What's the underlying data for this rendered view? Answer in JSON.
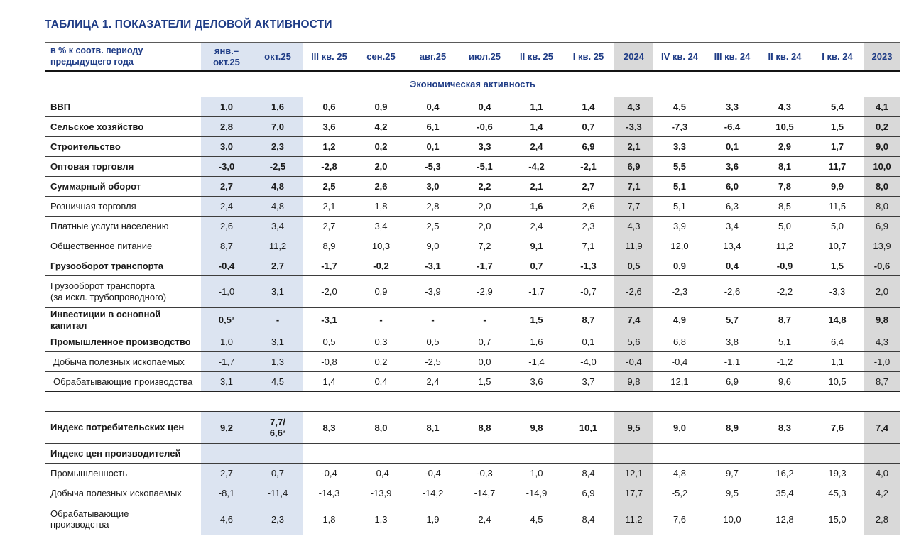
{
  "page": {
    "title": "ТАБЛИЦА 1. ПОКАЗАТЕЛИ ДЕЛОВОЙ АКТИВНОСТИ"
  },
  "colors": {
    "heading_navy": "#1f3c86",
    "column_shade_blue": "#dce4f1",
    "column_shade_gray": "#d9d9d9",
    "body_text": "#1a1a1a"
  },
  "table": {
    "corner_label": "в % к соотв. периоду\nпредыдущего года",
    "columns": [
      {
        "label": "янв.–\nокт.25",
        "shade": "blue"
      },
      {
        "label": "окт.25",
        "shade": "blue"
      },
      {
        "label": "III кв. 25"
      },
      {
        "label": "сен.25"
      },
      {
        "label": "авг.25"
      },
      {
        "label": "июл.25"
      },
      {
        "label": "II кв. 25"
      },
      {
        "label": "I кв. 25"
      },
      {
        "label": "2024",
        "shade": "gray"
      },
      {
        "label": "IV кв. 24"
      },
      {
        "label": "III кв. 24"
      },
      {
        "label": "II кв. 24"
      },
      {
        "label": "I кв. 24"
      },
      {
        "label": "2023",
        "shade": "gray"
      }
    ],
    "section_header": "Экономическая активность",
    "rows": [
      {
        "label": "ВВП",
        "label_bold": true,
        "values_bold": true,
        "values": [
          "1,0",
          "1,6",
          "0,6",
          "0,9",
          "0,4",
          "0,4",
          "1,1",
          "1,4",
          "4,3",
          "4,5",
          "3,3",
          "4,3",
          "5,4",
          "4,1"
        ]
      },
      {
        "label": "Сельское хозяйство",
        "label_bold": true,
        "values_bold": true,
        "values": [
          "2,8",
          "7,0",
          "3,6",
          "4,2",
          "6,1",
          "-0,6",
          "1,4",
          "0,7",
          "-3,3",
          "-7,3",
          "-6,4",
          "10,5",
          "1,5",
          "0,2"
        ]
      },
      {
        "label": "Строительство",
        "label_bold": true,
        "values_bold": true,
        "values": [
          "3,0",
          "2,3",
          "1,2",
          "0,2",
          "0,1",
          "3,3",
          "2,4",
          "6,9",
          "2,1",
          "3,3",
          "0,1",
          "2,9",
          "1,7",
          "9,0"
        ]
      },
      {
        "label": "Оптовая торговля",
        "label_bold": true,
        "values_bold": true,
        "values": [
          "-3,0",
          "-2,5",
          "-2,8",
          "2,0",
          "-5,3",
          "-5,1",
          "-4,2",
          "-2,1",
          "6,9",
          "5,5",
          "3,6",
          "8,1",
          "11,7",
          "10,0"
        ]
      },
      {
        "label": "Суммарный оборот",
        "label_bold": true,
        "values_bold": true,
        "values": [
          "2,7",
          "4,8",
          "2,5",
          "2,6",
          "3,0",
          "2,2",
          "2,1",
          "2,7",
          "7,1",
          "5,1",
          "6,0",
          "7,8",
          "9,9",
          "8,0"
        ]
      },
      {
        "label": "Розничная торговля",
        "bold_cells": [
          6
        ],
        "values": [
          "2,4",
          "4,8",
          "2,1",
          "1,8",
          "2,8",
          "2,0",
          "1,6",
          "2,6",
          "7,7",
          "5,1",
          "6,3",
          "8,5",
          "11,5",
          "8,0"
        ]
      },
      {
        "label": "Платные услуги населению",
        "values": [
          "2,6",
          "3,4",
          "2,7",
          "3,4",
          "2,5",
          "2,0",
          "2,4",
          "2,3",
          "4,3",
          "3,9",
          "3,4",
          "5,0",
          "5,0",
          "6,9"
        ]
      },
      {
        "label": "Общественное питание",
        "bold_cells": [
          6
        ],
        "values": [
          "8,7",
          "11,2",
          "8,9",
          "10,3",
          "9,0",
          "7,2",
          "9,1",
          "7,1",
          "11,9",
          "12,0",
          "13,4",
          "11,2",
          "10,7",
          "13,9"
        ]
      },
      {
        "label": "Грузооборот транспорта",
        "label_bold": true,
        "values_bold": true,
        "values": [
          "-0,4",
          "2,7",
          "-1,7",
          "-0,2",
          "-3,1",
          "-1,7",
          "0,7",
          "-1,3",
          "0,5",
          "0,9",
          "0,4",
          "-0,9",
          "1,5",
          "-0,6"
        ]
      },
      {
        "label": "Грузооборот транспорта\n(за искл. трубопроводного)",
        "values": [
          "-1,0",
          "3,1",
          "-2,0",
          "0,9",
          "-3,9",
          "-2,9",
          "-1,7",
          "-0,7",
          "-2,6",
          "-2,3",
          "-2,6",
          "-2,2",
          "-3,3",
          "2,0"
        ]
      },
      {
        "label": "Инвестиции в основной капитал",
        "label_bold": true,
        "values_bold": true,
        "values": [
          "0,5¹",
          "-",
          "-3,1",
          "-",
          "-",
          "-",
          "1,5",
          "8,7",
          "7,4",
          "4,9",
          "5,7",
          "8,7",
          "14,8",
          "9,8"
        ]
      },
      {
        "label": "Промышленное производство",
        "label_bold": true,
        "values": [
          "1,0",
          "3,1",
          "0,5",
          "0,3",
          "0,5",
          "0,7",
          "1,6",
          "0,1",
          "5,6",
          "6,8",
          "3,8",
          "5,1",
          "6,4",
          "4,3"
        ]
      },
      {
        "label": "Добыча полезных ископаемых",
        "indent": true,
        "values": [
          "-1,7",
          "1,3",
          "-0,8",
          "0,2",
          "-2,5",
          "0,0",
          "-1,4",
          "-4,0",
          "-0,4",
          "-0,4",
          "-1,1",
          "-1,2",
          "1,1",
          "-1,0"
        ]
      },
      {
        "label": "Обрабатывающие производства",
        "indent": true,
        "values": [
          "3,1",
          "4,5",
          "1,4",
          "0,4",
          "2,4",
          "1,5",
          "3,6",
          "3,7",
          "9,8",
          "12,1",
          "6,9",
          "9,6",
          "10,5",
          "8,7"
        ]
      }
    ],
    "rows2": [
      {
        "label": "Индекс потребительских цен",
        "label_bold": true,
        "values_bold": true,
        "values": [
          "9,2",
          "7,7/\n6,6²",
          "8,3",
          "8,0",
          "8,1",
          "8,8",
          "9,8",
          "10,1",
          "9,5",
          "9,0",
          "8,9",
          "8,3",
          "7,6",
          "7,4"
        ]
      },
      {
        "label": "Индекс цен производителей",
        "label_bold": true,
        "values": [
          "",
          "",
          "",
          "",
          "",
          "",
          "",
          "",
          "",
          "",
          "",
          "",
          "",
          ""
        ]
      },
      {
        "label": "Промышленность",
        "values": [
          "2,7",
          "0,7",
          "-0,4",
          "-0,4",
          "-0,4",
          "-0,3",
          "1,0",
          "8,4",
          "12,1",
          "4,8",
          "9,7",
          "16,2",
          "19,3",
          "4,0"
        ]
      },
      {
        "label": "Добыча полезных ископаемых",
        "values": [
          "-8,1",
          "-11,4",
          "-14,3",
          "-13,9",
          "-14,2",
          "-14,7",
          "-14,9",
          "6,9",
          "17,7",
          "-5,2",
          "9,5",
          "35,4",
          "45,3",
          "4,2"
        ]
      },
      {
        "label": "Обрабатывающие\nпроизводства",
        "values": [
          "4,6",
          "2,3",
          "1,8",
          "1,3",
          "1,9",
          "2,4",
          "4,5",
          "8,4",
          "11,2",
          "7,6",
          "10,0",
          "12,8",
          "15,0",
          "2,8"
        ]
      }
    ]
  }
}
